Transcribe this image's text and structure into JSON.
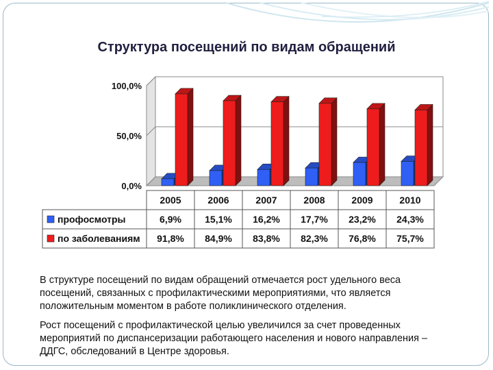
{
  "slide": {
    "title": "Структура посещений по видам обращений",
    "paragraph1": "В структуре посещений по видам обращений отмечается рост удельного веса посещений, связанных с профилактическими мероприятиями, что является положительным моментом в работе поликлинического отделения.",
    "paragraph2": "Рост посещений с профилактической целью увеличился за счет проведенных мероприятий по диспансеризации работающего населения и нового направления – ДДГС, обследований в Центре здоровья."
  },
  "chart_data": {
    "type": "bar",
    "categories": [
      "2005",
      "2006",
      "2007",
      "2008",
      "2009",
      "2010"
    ],
    "series": [
      {
        "name": "профосмотры",
        "color": "#2f5ff5",
        "values": [
          6.9,
          15.1,
          16.2,
          17.7,
          23.2,
          24.3
        ],
        "labels": [
          "6,9%",
          "15,1%",
          "16,2%",
          "17,7%",
          "23,2%",
          "24,3%"
        ]
      },
      {
        "name": "по заболеваниям",
        "color": "#ee1c1c",
        "values": [
          91.8,
          84.9,
          83.8,
          82.3,
          76.8,
          75.7
        ],
        "labels": [
          "91,8%",
          "84,9%",
          "83,8%",
          "82,3%",
          "76,8%",
          "75,7%"
        ]
      }
    ],
    "yticks": [
      "0,0%",
      "50,0%",
      "100,0%"
    ],
    "ylim": [
      0,
      100
    ],
    "grid": true,
    "legend": "data-table"
  }
}
